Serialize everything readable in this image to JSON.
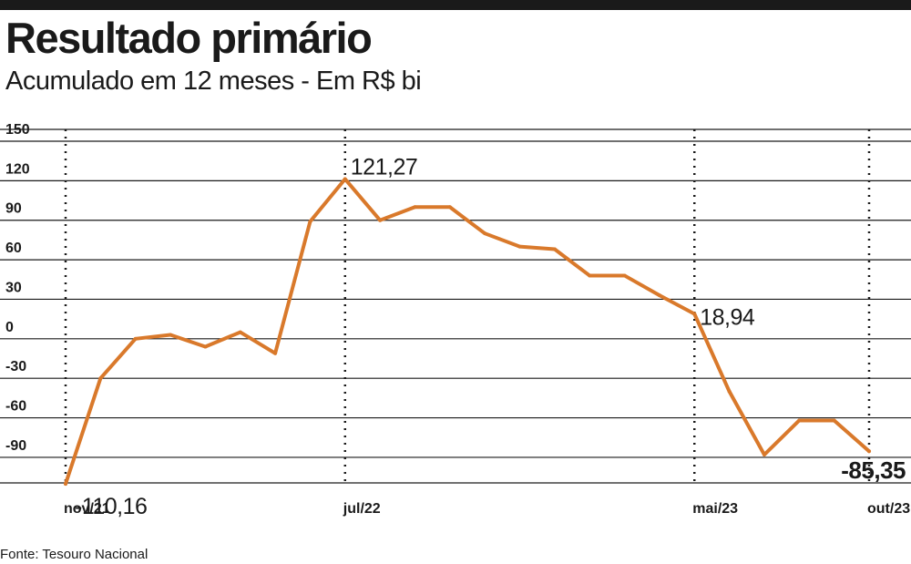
{
  "title": "Resultado primário",
  "subtitle": "Acumulado em 12 meses - Em R$ bi",
  "source": "Fonte: Tesouro Nacional",
  "colors": {
    "line": "#d9792b",
    "grid": "#1a1a1a",
    "text": "#1a1a1a"
  },
  "chart_data": {
    "type": "line",
    "title": "Resultado primário",
    "subtitle": "Acumulado em 12 meses - Em R$ bi",
    "xlabel": "",
    "ylabel": "",
    "ylim": [
      -110,
      150
    ],
    "yticks": [
      150,
      120,
      90,
      60,
      30,
      0,
      -30,
      -60,
      -90
    ],
    "ytick_labels": [
      "150",
      "120",
      "90",
      "60",
      "30",
      "0",
      "-30",
      "-60",
      "-90"
    ],
    "grid": true,
    "x": [
      "nov/21",
      "dez/21",
      "jan/22",
      "fev/22",
      "mar/22",
      "abr/22",
      "mai/22",
      "jun/22",
      "jul/22",
      "ago/22",
      "set/22",
      "out/22",
      "nov/22",
      "dez/22",
      "jan/23",
      "fev/23",
      "mar/23",
      "abr/23",
      "mai/23",
      "jun/23",
      "jul/23",
      "ago/23",
      "set/23",
      "out/23"
    ],
    "xtick_labels": [
      "nov/21",
      "jul/22",
      "mai/23",
      "out/23"
    ],
    "series": [
      {
        "values": [
          -110.16,
          -30,
          0,
          3,
          -6,
          5,
          -11,
          89,
          121.27,
          90,
          100,
          100,
          80,
          70,
          68,
          48,
          48,
          33,
          18.94,
          -40,
          -88,
          -62,
          -62,
          -85.35
        ]
      }
    ],
    "annotations": [
      {
        "label": "-110,16",
        "index": 0
      },
      {
        "label": "121,27",
        "index": 8
      },
      {
        "label": "18,94",
        "index": 18
      },
      {
        "label": "-85,35",
        "index": 23,
        "bold": true
      }
    ]
  }
}
